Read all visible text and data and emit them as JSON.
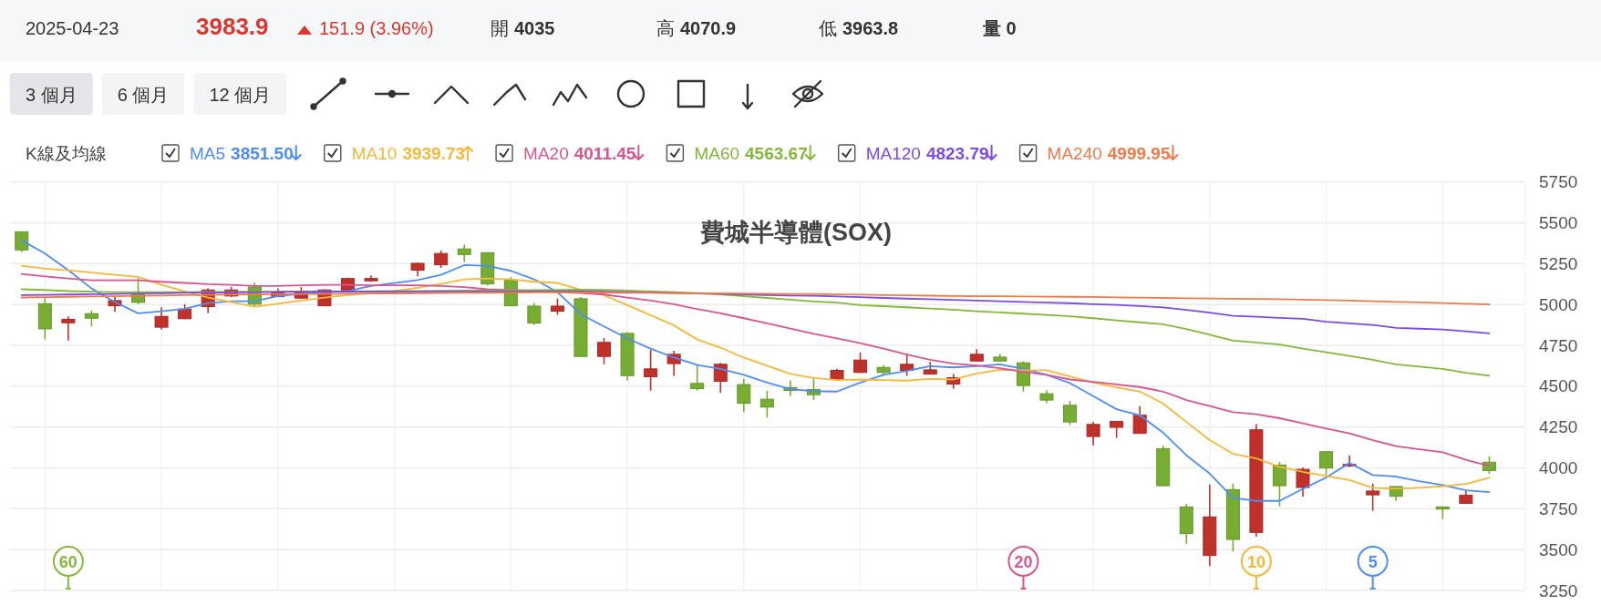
{
  "chart_data": {
    "type": "candlestick",
    "title": "費城半導體(SOX)",
    "legend_title": "K線及均線",
    "legend": "top left",
    "grid": true,
    "categories": [
      null,
      null,
      null,
      null,
      null,
      null,
      null,
      null,
      null,
      null,
      null,
      null,
      null,
      null,
      null,
      null,
      null,
      null,
      null,
      null,
      null,
      null,
      null,
      null,
      null,
      null,
      null,
      null,
      null,
      null,
      null,
      null,
      null,
      null,
      null,
      null,
      null,
      null,
      null,
      null,
      null,
      null,
      null,
      null,
      null,
      null,
      null,
      null,
      null,
      null,
      null,
      null,
      null,
      null,
      null,
      null,
      null,
      null,
      null,
      null,
      null,
      null,
      null,
      null
    ],
    "ohlc": [
      [
        5445,
        5447,
        5321,
        5334
      ],
      [
        5005,
        5042,
        4786,
        4851
      ],
      [
        4888,
        4927,
        4779,
        4909
      ],
      [
        4944,
        4963,
        4866,
        4916
      ],
      [
        4992,
        5046,
        4955,
        5024
      ],
      [
        5061,
        5163,
        5002,
        5013
      ],
      [
        4861,
        4983,
        4847,
        4927
      ],
      [
        4913,
        5002,
        4910,
        4972
      ],
      [
        4987,
        5098,
        4946,
        5089
      ],
      [
        5052,
        5107,
        5046,
        5089
      ],
      [
        5107,
        5135,
        4987,
        5002
      ],
      [
        5048,
        5098,
        5045,
        5076
      ],
      [
        5039,
        5107,
        5037,
        5074
      ],
      [
        4992,
        5093,
        4990,
        5089
      ],
      [
        5089,
        5163,
        5080,
        5159
      ],
      [
        5145,
        5178,
        5139,
        5159
      ],
      null,
      [
        5210,
        5256,
        5172,
        5252
      ],
      [
        5243,
        5330,
        5224,
        5312
      ],
      [
        5340,
        5366,
        5260,
        5306
      ],
      [
        5317,
        5320,
        5117,
        5126
      ],
      [
        5150,
        5167,
        4990,
        4992
      ],
      [
        4990,
        5009,
        4875,
        4886
      ],
      [
        4959,
        5037,
        4937,
        4990
      ],
      [
        5035,
        5046,
        4680,
        4682
      ],
      [
        4682,
        4795,
        4634,
        4768
      ],
      [
        4823,
        4831,
        4536,
        4565
      ],
      [
        4558,
        4723,
        4472,
        4606
      ],
      [
        4638,
        4716,
        4563,
        4695
      ],
      [
        4517,
        4630,
        4474,
        4485
      ],
      [
        4530,
        4643,
        4459,
        4634
      ],
      [
        4510,
        4545,
        4341,
        4396
      ],
      [
        4420,
        4472,
        4307,
        4372
      ],
      [
        4491,
        4536,
        4439,
        4474
      ],
      [
        4480,
        4547,
        4415,
        4448
      ],
      [
        4541,
        4606,
        4539,
        4597
      ],
      [
        4584,
        4706,
        4582,
        4660
      ],
      [
        4615,
        4628,
        4563,
        4584
      ],
      [
        4597,
        4699,
        4563,
        4634
      ],
      [
        4574,
        4649,
        4572,
        4600
      ],
      [
        4513,
        4574,
        4485,
        4552
      ],
      [
        4654,
        4727,
        4652,
        4695
      ],
      [
        4678,
        4697,
        4652,
        4654
      ],
      [
        4643,
        4652,
        4467,
        4504
      ],
      [
        4454,
        4476,
        4396,
        4415
      ],
      [
        4383,
        4411,
        4263,
        4281
      ],
      [
        4192,
        4281,
        4136,
        4266
      ],
      [
        4248,
        4285,
        4183,
        4285
      ],
      [
        4211,
        4378,
        4209,
        4322
      ],
      [
        4118,
        4136,
        3889,
        3891
      ],
      [
        3761,
        3780,
        3535,
        3598
      ],
      [
        3464,
        3897,
        3399,
        3700
      ],
      [
        3867,
        3904,
        3488,
        3562
      ],
      [
        3605,
        4268,
        3579,
        4233
      ],
      [
        4017,
        4036,
        3765,
        3891
      ],
      [
        3880,
        4003,
        3824,
        3991
      ],
      [
        4099,
        4100,
        3956,
        3999
      ],
      [
        4012,
        4077,
        4006,
        4021
      ],
      [
        3835,
        3904,
        3737,
        3858
      ],
      [
        3886,
        3886,
        3798,
        3826
      ],
      null,
      [
        3761,
        3765,
        3687,
        3748
      ],
      [
        3783,
        3858,
        3780,
        3832
      ],
      [
        4035,
        4070.9,
        3963.8,
        3983.9
      ]
    ],
    "colors": [
      "#76ad32",
      "#76ad32",
      "#c0312b",
      "#76ad32",
      "#c0312b",
      "#76ad32",
      "#c0312b",
      "#c0312b",
      "#c0312b",
      "#c0312b",
      "#76ad32",
      "#c0312b",
      "#c0312b",
      "#c0312b",
      "#c0312b",
      "#c0312b",
      null,
      "#c0312b",
      "#c0312b",
      "#76ad32",
      "#76ad32",
      "#76ad32",
      "#76ad32",
      "#c0312b",
      "#76ad32",
      "#c0312b",
      "#76ad32",
      "#c0312b",
      "#c0312b",
      "#76ad32",
      "#c0312b",
      "#76ad32",
      "#76ad32",
      "#76ad32",
      "#76ad32",
      "#c0312b",
      "#c0312b",
      "#76ad32",
      "#c0312b",
      "#c0312b",
      "#c0312b",
      "#c0312b",
      "#76ad32",
      "#76ad32",
      "#76ad32",
      "#76ad32",
      "#c0312b",
      "#c0312b",
      "#c0312b",
      "#76ad32",
      "#76ad32",
      "#c0312b",
      "#76ad32",
      "#c0312b",
      "#76ad32",
      "#c0312b",
      "#76ad32",
      "#c0312b",
      "#c0312b",
      "#76ad32",
      null,
      "#76ad32",
      "#c0312b",
      "#76ad32"
    ],
    "series": [
      {
        "name": "MA5",
        "type": "line",
        "color": "#4e8df5",
        "values": [
          5392,
          5312,
          5210,
          5098,
          5015,
          4946,
          4959,
          4974,
          5009,
          5020,
          5020,
          5052,
          5065,
          5076,
          5083,
          5113,
          5132,
          5150,
          5182,
          5241,
          5236,
          5206,
          5154,
          5076,
          4940,
          4866,
          4792,
          4730,
          4675,
          4630,
          4606,
          4569,
          4522,
          4482,
          4470,
          4467,
          4522,
          4569,
          4593,
          4623,
          4615,
          4623,
          4634,
          4606,
          4569,
          4519,
          4439,
          4359,
          4322,
          4216,
          4077,
          3965,
          3817,
          3798,
          3798,
          3872,
          3941,
          4030,
          3956,
          3947,
          3919,
          3895,
          3863,
          3851.5
        ]
      },
      {
        "name": "MA10",
        "type": "line",
        "color": "#f5b83a",
        "values": [
          5237,
          5219,
          5210,
          5195,
          5182,
          5169,
          5120,
          5080,
          5042,
          5015,
          4987,
          5005,
          5024,
          5042,
          5057,
          5070,
          5083,
          5102,
          5126,
          5154,
          5159,
          5154,
          5139,
          5132,
          5089,
          5057,
          4996,
          4935,
          4872,
          4786,
          4736,
          4675,
          4625,
          4575,
          4550,
          4537,
          4541,
          4537,
          4534,
          4545,
          4541,
          4578,
          4600,
          4597,
          4597,
          4560,
          4522,
          4493,
          4467,
          4393,
          4281,
          4170,
          4086,
          4058,
          4006,
          3975,
          3951,
          3925,
          3878,
          3872,
          3878,
          3887,
          3902,
          3939.73
        ]
      },
      {
        "name": "MA20",
        "type": "line",
        "color": "#d9558f",
        "values": [
          5187,
          5172,
          5159,
          5148,
          5148,
          5148,
          5139,
          5132,
          5124,
          5120,
          5113,
          5113,
          5117,
          5120,
          5120,
          5117,
          5117,
          5117,
          5113,
          5106,
          5093,
          5089,
          5083,
          5076,
          5070,
          5061,
          5042,
          5024,
          5002,
          4972,
          4946,
          4916,
          4885,
          4853,
          4820,
          4792,
          4764,
          4730,
          4693,
          4662,
          4638,
          4627,
          4610,
          4588,
          4569,
          4541,
          4526,
          4511,
          4495,
          4467,
          4415,
          4378,
          4341,
          4328,
          4304,
          4272,
          4240,
          4211,
          4170,
          4133,
          4114,
          4096,
          4049,
          4011.45
        ]
      },
      {
        "name": "MA60",
        "type": "line",
        "color": "#84b83a",
        "values": [
          5093,
          5089,
          5082,
          5078,
          5076,
          5076,
          5076,
          5076,
          5077,
          5077,
          5078,
          5078,
          5079,
          5080,
          5080,
          5081,
          5082,
          5083,
          5084,
          5085,
          5086,
          5087,
          5088,
          5089,
          5091,
          5089,
          5085,
          5080,
          5075,
          5070,
          5062,
          5050,
          5040,
          5030,
          5018,
          5012,
          4996,
          4990,
          4983,
          4975,
          4968,
          4959,
          4952,
          4944,
          4936,
          4928,
          4916,
          4903,
          4891,
          4879,
          4850,
          4815,
          4779,
          4767,
          4755,
          4730,
          4708,
          4685,
          4662,
          4634,
          4620,
          4606,
          4582,
          4563.67
        ]
      },
      {
        "name": "MA120",
        "type": "line",
        "color": "#7c4ae6",
        "values": [
          5057,
          5059,
          5061,
          5063,
          5065,
          5067,
          5069,
          5071,
          5073,
          5074,
          5076,
          5077,
          5078,
          5079,
          5079,
          5080,
          5080,
          5080,
          5080,
          5080,
          5080,
          5080,
          5080,
          5080,
          5079,
          5078,
          5076,
          5073,
          5070,
          5067,
          5064,
          5061,
          5058,
          5055,
          5053,
          5049,
          5045,
          5040,
          5036,
          5032,
          5028,
          5024,
          5020,
          5016,
          5012,
          5008,
          5002,
          4998,
          4991,
          4982,
          4967,
          4950,
          4931,
          4925,
          4918,
          4912,
          4894,
          4885,
          4875,
          4857,
          4852,
          4847,
          4836,
          4823.79
        ]
      },
      {
        "name": "MA240",
        "type": "line",
        "color": "#f07a4a",
        "values": [
          5043,
          5045,
          5047,
          5049,
          5051,
          5053,
          5055,
          5057,
          5059,
          5061,
          5062,
          5063,
          5064,
          5065,
          5066,
          5067,
          5068,
          5069,
          5070,
          5071,
          5072,
          5073,
          5074,
          5074,
          5074,
          5073,
          5072,
          5071,
          5070,
          5069,
          5068,
          5067,
          5066,
          5065,
          5064,
          5062,
          5060,
          5058,
          5056,
          5054,
          5052,
          5051,
          5050,
          5049,
          5048,
          5047,
          5046,
          5044,
          5042,
          5040,
          5038,
          5037,
          5035,
          5034,
          5032,
          5030,
          5027,
          5024,
          5020,
          5016,
          5013,
          5009,
          5004,
          4999.95
        ]
      }
    ],
    "ylim": [
      3250,
      5750
    ],
    "yticks": [
      3250,
      3500,
      3750,
      4000,
      4250,
      4500,
      4750,
      5000,
      5250,
      5500,
      5750
    ],
    "annotations": [
      "2025-04-23",
      "3983.9",
      "151.9 (3.96%)",
      "開",
      "4035",
      "高",
      "4070.9",
      "低",
      "3963.8",
      "量 0",
      "3 個月",
      "6 個月",
      "12 個月",
      "60",
      "20",
      "10",
      "5",
      "3851.50",
      "3939.73",
      "4011.45",
      "4563.67",
      "4823.79",
      "4999.95"
    ]
  }
}
